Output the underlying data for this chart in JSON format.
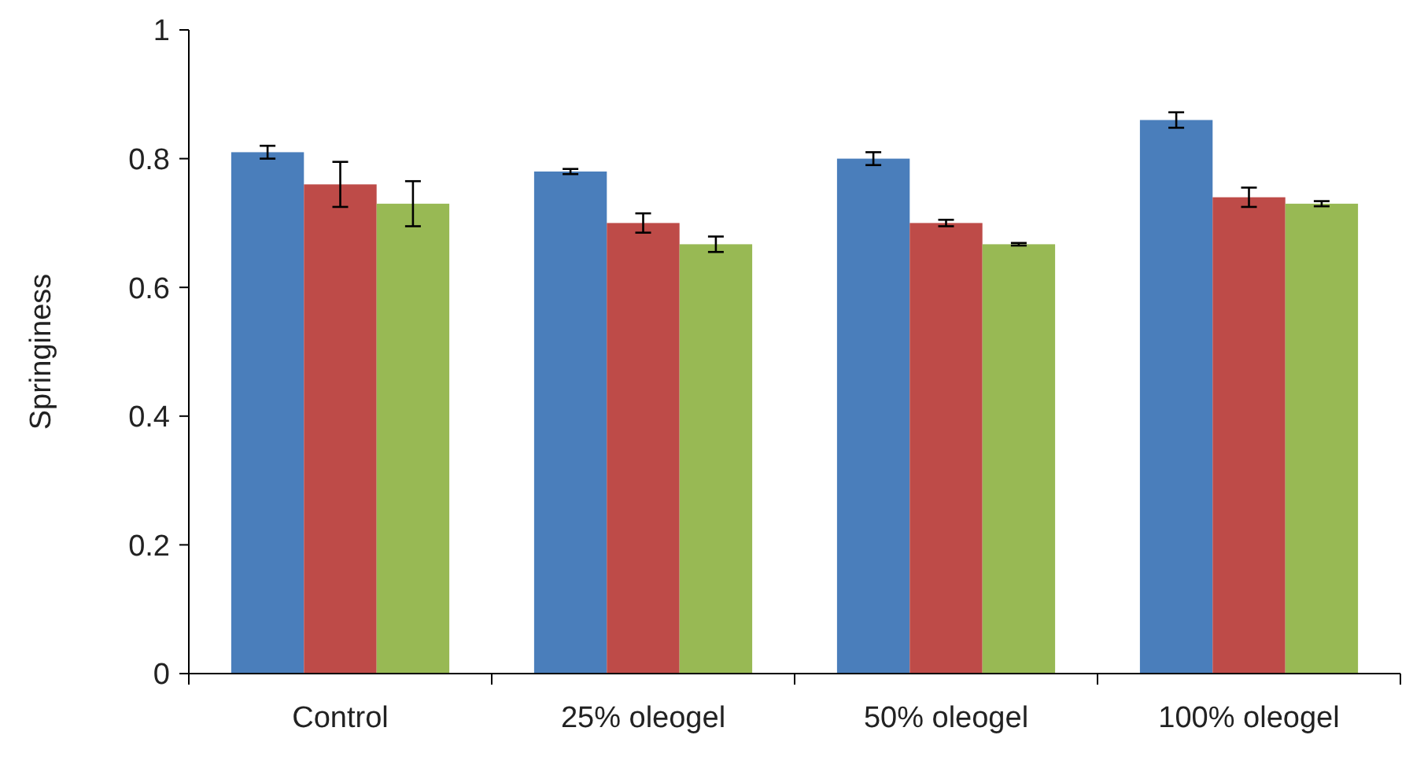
{
  "chart_data": {
    "type": "bar",
    "ylabel": "Springiness",
    "categories": [
      "Control",
      "25% oleogel",
      "50% oleogel",
      "100% oleogel"
    ],
    "series": [
      {
        "color": "#4a7ebb",
        "values": [
          0.81,
          0.78,
          0.8,
          0.86
        ],
        "errors": [
          0.01,
          0.004,
          0.01,
          0.012
        ]
      },
      {
        "color": "#be4b48",
        "values": [
          0.76,
          0.7,
          0.7,
          0.74
        ],
        "errors": [
          0.035,
          0.015,
          0.005,
          0.015
        ]
      },
      {
        "color": "#98b954",
        "values": [
          0.73,
          0.667,
          0.667,
          0.73
        ],
        "errors": [
          0.035,
          0.012,
          0.002,
          0.004
        ]
      }
    ],
    "ylim": [
      0,
      1
    ],
    "yticks": [
      0,
      0.2,
      0.4,
      0.6,
      0.8,
      1
    ]
  }
}
